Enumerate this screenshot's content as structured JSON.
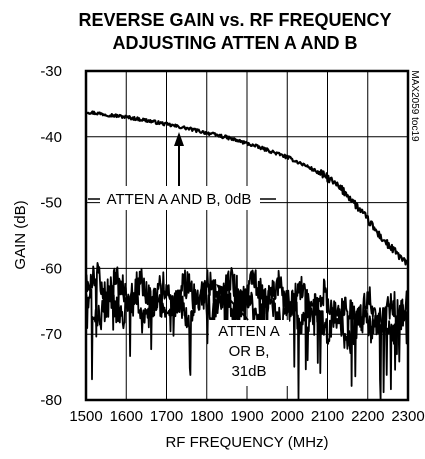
{
  "chart_data": {
    "type": "line",
    "title_lines": [
      "REVERSE GAIN vs. RF FREQUENCY",
      "ADJUSTING ATTEN A AND B"
    ],
    "xlabel": "RF FREQUENCY (MHz)",
    "ylabel": "GAIN (dB)",
    "xlim": [
      1500,
      2300
    ],
    "ylim": [
      -80,
      -30
    ],
    "x_ticks": [
      1500,
      1600,
      1700,
      1800,
      1900,
      2000,
      2100,
      2200,
      2300
    ],
    "y_ticks": [
      -30,
      -40,
      -50,
      -60,
      -70,
      -80
    ],
    "grid": true,
    "doc_code": "MAX2059 toc19",
    "series": [
      {
        "x": [
          1500,
          1550,
          1600,
          1650,
          1700,
          1750,
          1800,
          1850,
          1900,
          1950,
          2000,
          2050,
          2100,
          2150,
          2200,
          2225,
          2250,
          2275,
          2300
        ],
        "y": [
          -36.2,
          -36.6,
          -37.0,
          -37.5,
          -38.1,
          -38.7,
          -39.4,
          -40.1,
          -41.0,
          -42.0,
          -43.1,
          -44.5,
          -46.2,
          -48.8,
          -52.6,
          -54.7,
          -56.4,
          -57.9,
          -59.5
        ]
      },
      {
        "x": [
          1500,
          1600,
          1700,
          1800,
          1900,
          2000,
          2100,
          2150,
          2200,
          2250,
          2300
        ],
        "y": [
          -62.0,
          -63.0,
          -64.0,
          -63.5,
          -63.0,
          -64.0,
          -65.0,
          -67.0,
          -66.0,
          -67.0,
          -65.0
        ]
      },
      {
        "x": [
          1500,
          1600,
          1700,
          1800,
          1900,
          2000,
          2100,
          2150,
          2200,
          2250,
          2300
        ],
        "y": [
          -66.0,
          -66.0,
          -67.0,
          -65.0,
          -66.0,
          -67.0,
          -68.0,
          -70.0,
          -68.0,
          -69.0,
          -67.0
        ]
      }
    ],
    "annotations": [
      {
        "text": "ATTEN A AND B, 0dB",
        "points_to": [
          1738,
          -38.9
        ]
      },
      {
        "lines": [
          "ATTEN A",
          "OR B,",
          "31dB"
        ],
        "points_to": [
          1820,
          -61.5
        ]
      }
    ]
  }
}
